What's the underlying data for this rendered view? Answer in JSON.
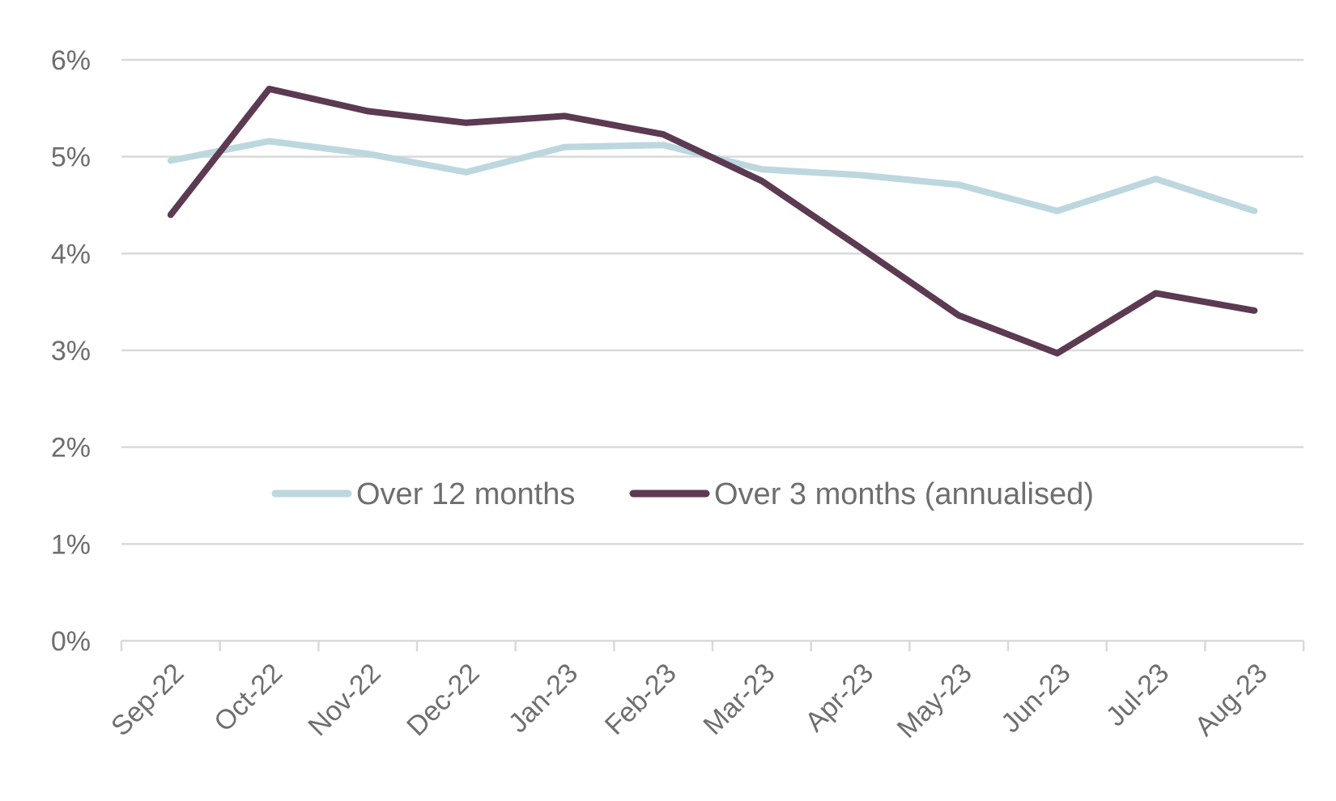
{
  "chart_data": {
    "type": "line",
    "title": "",
    "xlabel": "",
    "ylabel": "",
    "categories": [
      "Sep-22",
      "Oct-22",
      "Nov-22",
      "Dec-22",
      "Jan-23",
      "Feb-23",
      "Mar-23",
      "Apr-23",
      "May-23",
      "Jun-23",
      "Jul-23",
      "Aug-23"
    ],
    "y_tick_labels": [
      "0%",
      "1%",
      "2%",
      "3%",
      "4%",
      "5%",
      "6%"
    ],
    "y_ticks": [
      0,
      1,
      2,
      3,
      4,
      5,
      6
    ],
    "ylim": [
      0,
      6
    ],
    "grid": true,
    "legend_position": "center",
    "series": [
      {
        "name": "Over 12 months",
        "color": "#bdd7de",
        "values": [
          4.96,
          5.16,
          5.03,
          4.84,
          5.1,
          5.12,
          4.87,
          4.81,
          4.71,
          4.44,
          4.77,
          4.44
        ]
      },
      {
        "name": "Over 3 months (annualised)",
        "color": "#5c3a52",
        "values": [
          4.4,
          5.7,
          5.47,
          5.35,
          5.42,
          5.23,
          4.75,
          4.06,
          3.36,
          2.97,
          3.59,
          3.41
        ]
      }
    ]
  }
}
